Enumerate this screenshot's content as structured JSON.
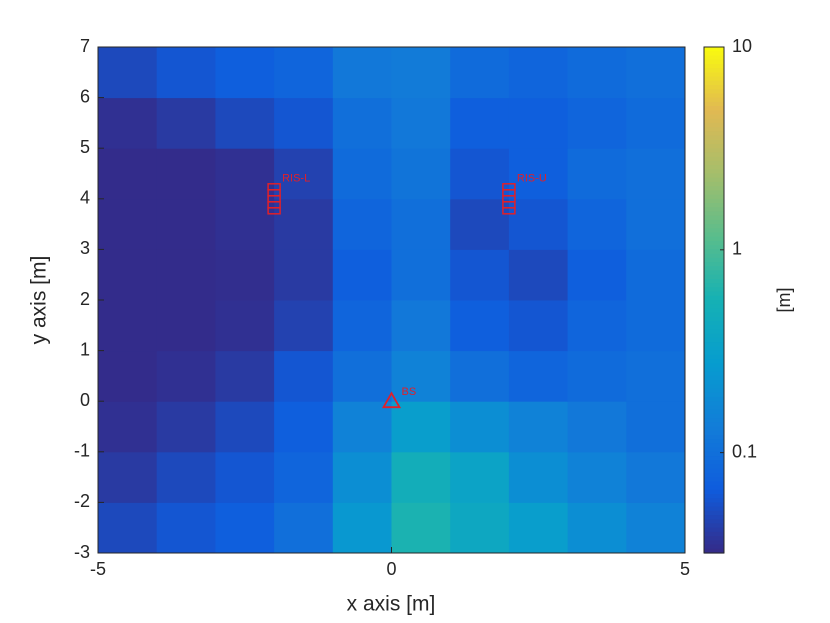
{
  "chart_data": {
    "type": "heatmap",
    "x_label": "x axis [m]",
    "y_label": "y axis [m]",
    "colorbar_label": "[m]",
    "x": [
      -4.5,
      -3.5,
      -2.5,
      -1.5,
      -0.5,
      0.5,
      1.5,
      2.5,
      3.5,
      4.5
    ],
    "y": [
      -2.5,
      -1.5,
      -0.5,
      0.5,
      1.5,
      2.5,
      3.5,
      4.5,
      5.5,
      6.5
    ],
    "z": [
      [
        0.05,
        0.06,
        0.07,
        0.1,
        0.25,
        0.6,
        0.4,
        0.3,
        0.2,
        0.15
      ],
      [
        0.04,
        0.05,
        0.06,
        0.08,
        0.2,
        0.5,
        0.35,
        0.2,
        0.15,
        0.12
      ],
      [
        0.035,
        0.04,
        0.05,
        0.07,
        0.15,
        0.3,
        0.2,
        0.15,
        0.12,
        0.1
      ],
      [
        0.033,
        0.035,
        0.04,
        0.06,
        0.1,
        0.15,
        0.1,
        0.08,
        0.09,
        0.1
      ],
      [
        0.033,
        0.033,
        0.035,
        0.045,
        0.08,
        0.12,
        0.07,
        0.06,
        0.08,
        0.09
      ],
      [
        0.033,
        0.033,
        0.034,
        0.04,
        0.07,
        0.1,
        0.06,
        0.05,
        0.07,
        0.09
      ],
      [
        0.033,
        0.033,
        0.035,
        0.04,
        0.08,
        0.1,
        0.05,
        0.06,
        0.08,
        0.1
      ],
      [
        0.033,
        0.033,
        0.035,
        0.045,
        0.09,
        0.11,
        0.06,
        0.07,
        0.09,
        0.1
      ],
      [
        0.035,
        0.04,
        0.05,
        0.06,
        0.1,
        0.12,
        0.07,
        0.07,
        0.08,
        0.09
      ],
      [
        0.05,
        0.06,
        0.07,
        0.08,
        0.12,
        0.13,
        0.09,
        0.08,
        0.09,
        0.1
      ]
    ],
    "xlim": [
      -5,
      5
    ],
    "ylim": [
      -3,
      7
    ],
    "xticks": [
      -5,
      0,
      5
    ],
    "yticks": [
      -3,
      -2,
      -1,
      0,
      1,
      2,
      3,
      4,
      5,
      6,
      7
    ],
    "colormap": "parula",
    "color_scale": "log",
    "clim": [
      0.032,
      10
    ],
    "cticks": [
      0.1,
      1,
      10
    ],
    "marker_color": "#e0202a",
    "markers": [
      {
        "label": "BS",
        "x": 0,
        "y": 0,
        "shape": "triangle"
      },
      {
        "label": "RIS-L",
        "x": -2,
        "y": 4,
        "shape": "ris"
      },
      {
        "label": "RIS-U",
        "x": 2,
        "y": 4,
        "shape": "ris"
      }
    ]
  }
}
